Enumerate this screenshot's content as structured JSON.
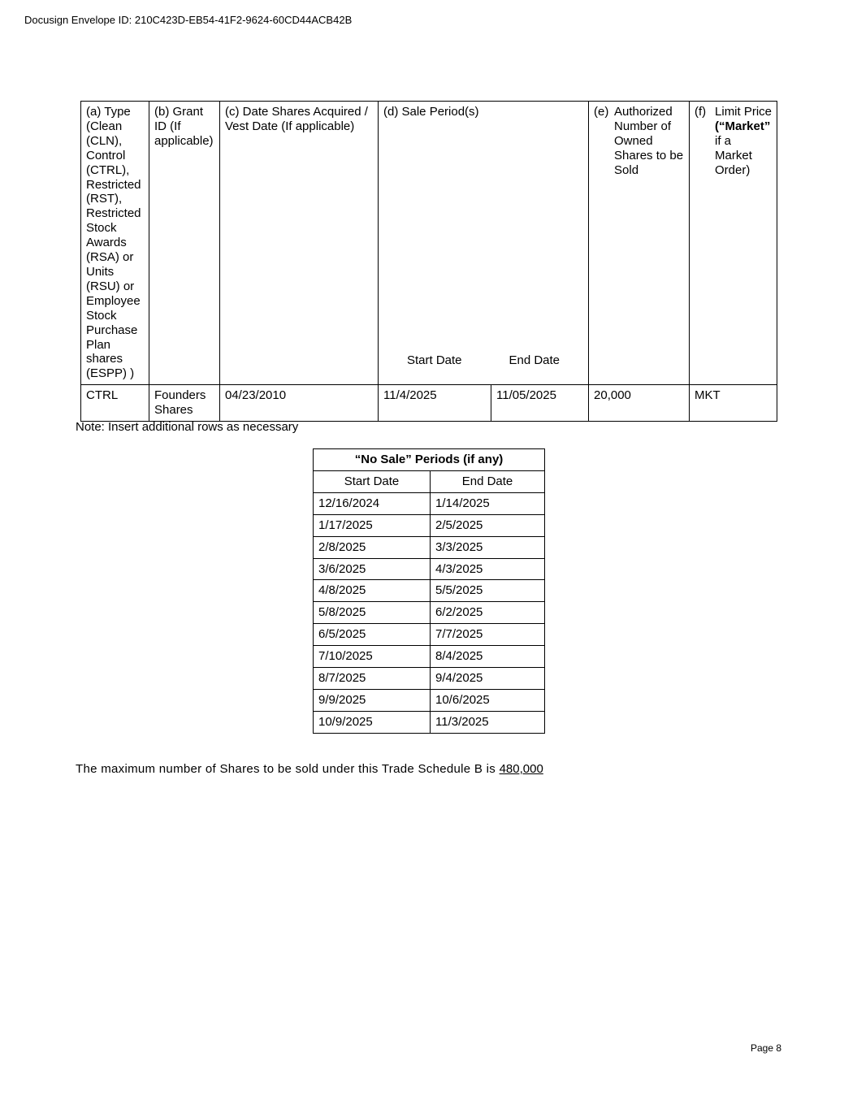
{
  "envelope_id": "Docusign Envelope ID: 210C423D-EB54-41F2-9624-60CD44ACB42B",
  "main_table": {
    "headers": {
      "a": "(a) Type (Clean (CLN), Control (CTRL), Restricted (RST), Restricted Stock Awards (RSA) or Units (RSU) or Employee Stock Purchase Plan shares (ESPP) )",
      "b": "(b) Grant ID (If applicable)",
      "c": "(c)  Date Shares Acquired / Vest Date (If applicable)",
      "d": "(d) Sale Period(s)",
      "d_start": "Start Date",
      "d_end": "End Date",
      "e_prefix": "(e)",
      "e": "Authorized Number of Owned Shares to be Sold",
      "f_prefix": "(f)",
      "f_pre": "Limit Price",
      "f_bold": "(“Market”",
      "f_post": "if a Market Order)"
    },
    "rows": [
      {
        "type": "CTRL",
        "grant_id": "Founders Shares",
        "acquired": "04/23/2010",
        "start": "11/4/2025",
        "end": "11/05/2025",
        "shares": "20,000",
        "limit": "MKT"
      }
    ]
  },
  "note": "Note: Insert additional rows as necessary",
  "no_sale": {
    "title": "“No Sale” Periods (if any)",
    "col_start": "Start Date",
    "col_end": "End Date",
    "rows": [
      [
        "12/16/2024",
        "1/14/2025"
      ],
      [
        "1/17/2025",
        "2/5/2025"
      ],
      [
        "2/8/2025",
        "3/3/2025"
      ],
      [
        "3/6/2025",
        "4/3/2025"
      ],
      [
        "4/8/2025",
        "5/5/2025"
      ],
      [
        "5/8/2025",
        "6/2/2025"
      ],
      [
        "6/5/2025",
        "7/7/2025"
      ],
      [
        "7/10/2025",
        "8/4/2025"
      ],
      [
        "8/7/2025",
        "9/4/2025"
      ],
      [
        "9/9/2025",
        "10/6/2025"
      ],
      [
        "10/9/2025",
        "11/3/2025"
      ]
    ]
  },
  "max_text": "The maximum number of Shares to be sold under this Trade Schedule B is ",
  "max_value": "480,000",
  "page": "Page 8"
}
